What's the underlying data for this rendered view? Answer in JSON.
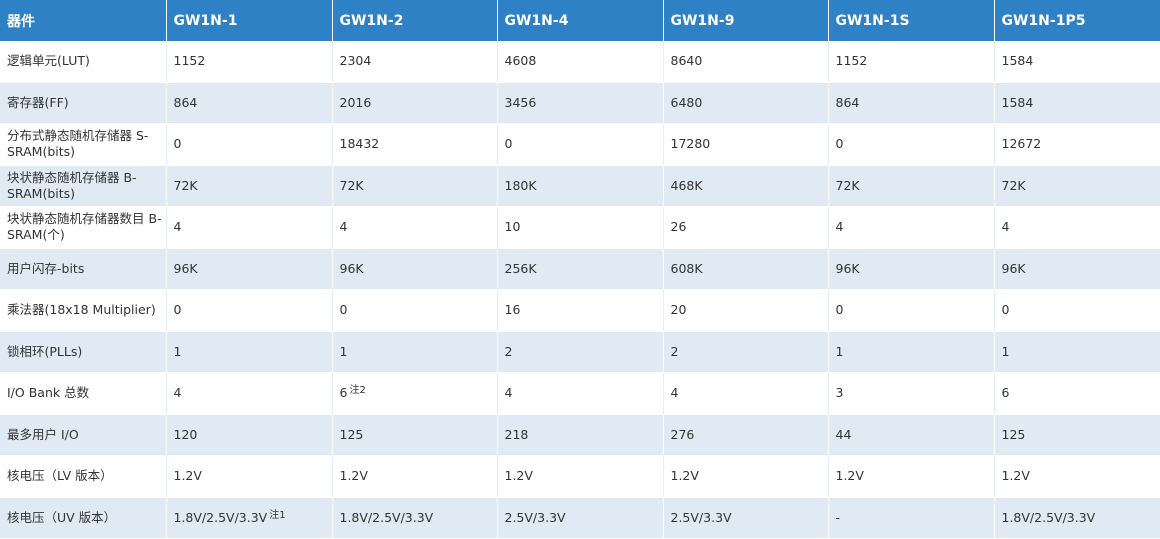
{
  "headers": [
    "器件",
    "GW1N-1",
    "GW1N-2",
    "GW1N-4",
    "GW1N-9",
    "GW1N-1S",
    "GW1N-1P5"
  ],
  "rows": [
    {
      "label": "逻辑单元(LUT)",
      "cells": [
        "1152",
        "2304",
        "4608",
        "8640",
        "1152",
        "1584"
      ]
    },
    {
      "label": "寄存器(FF)",
      "cells": [
        "864",
        "2016",
        "3456",
        "6480",
        "864",
        "1584"
      ]
    },
    {
      "label": "分布式静态随机存储器 S-SRAM(bits)",
      "cells": [
        "0",
        "18432",
        "0",
        "17280",
        "0",
        "12672"
      ]
    },
    {
      "label": "块状静态随机存储器 B-SRAM(bits)",
      "cells": [
        "72K",
        "72K",
        "180K",
        "468K",
        "72K",
        "72K"
      ]
    },
    {
      "label": "块状静态随机存储器数目 B-SRAM(个)",
      "cells": [
        "4",
        "4",
        "10",
        "26",
        "4",
        "4"
      ]
    },
    {
      "label": "用户闪存-bits",
      "cells": [
        "96K",
        "96K",
        "256K",
        "608K",
        "96K",
        "96K"
      ]
    },
    {
      "label": "乘法器(18x18 Multiplier)",
      "cells": [
        "0",
        "0",
        "16",
        "20",
        "0",
        "0"
      ]
    },
    {
      "label": "锁相环(PLLs)",
      "cells": [
        "1",
        "1",
        "2",
        "2",
        "1",
        "1"
      ]
    },
    {
      "label": "I/O Bank 总数",
      "cells": [
        "4",
        "6",
        "4",
        "4",
        "3",
        "6"
      ]
    },
    {
      "label": "最多用户 I/O",
      "cells": [
        "120",
        "125",
        "218",
        "276",
        "44",
        "125"
      ]
    },
    {
      "label": "核电压（LV 版本）",
      "cells": [
        "1.2V",
        "1.2V",
        "1.2V",
        "1.2V",
        "1.2V",
        "1.2V"
      ]
    },
    {
      "label": "核电压（UV 版本）",
      "cells": [
        "1.8V/2.5V/3.3V",
        "1.8V/2.5V/3.3V",
        "2.5V/3.3V",
        "2.5V/3.3V",
        "-",
        "1.8V/2.5V/3.3V"
      ]
    }
  ],
  "notes": {
    "iobank_gw1n2": "注2",
    "uv_gw1n1": "注1"
  },
  "colors": {
    "header_bg": "#2e81c4",
    "stripe_bg": "#dfeaf4"
  }
}
